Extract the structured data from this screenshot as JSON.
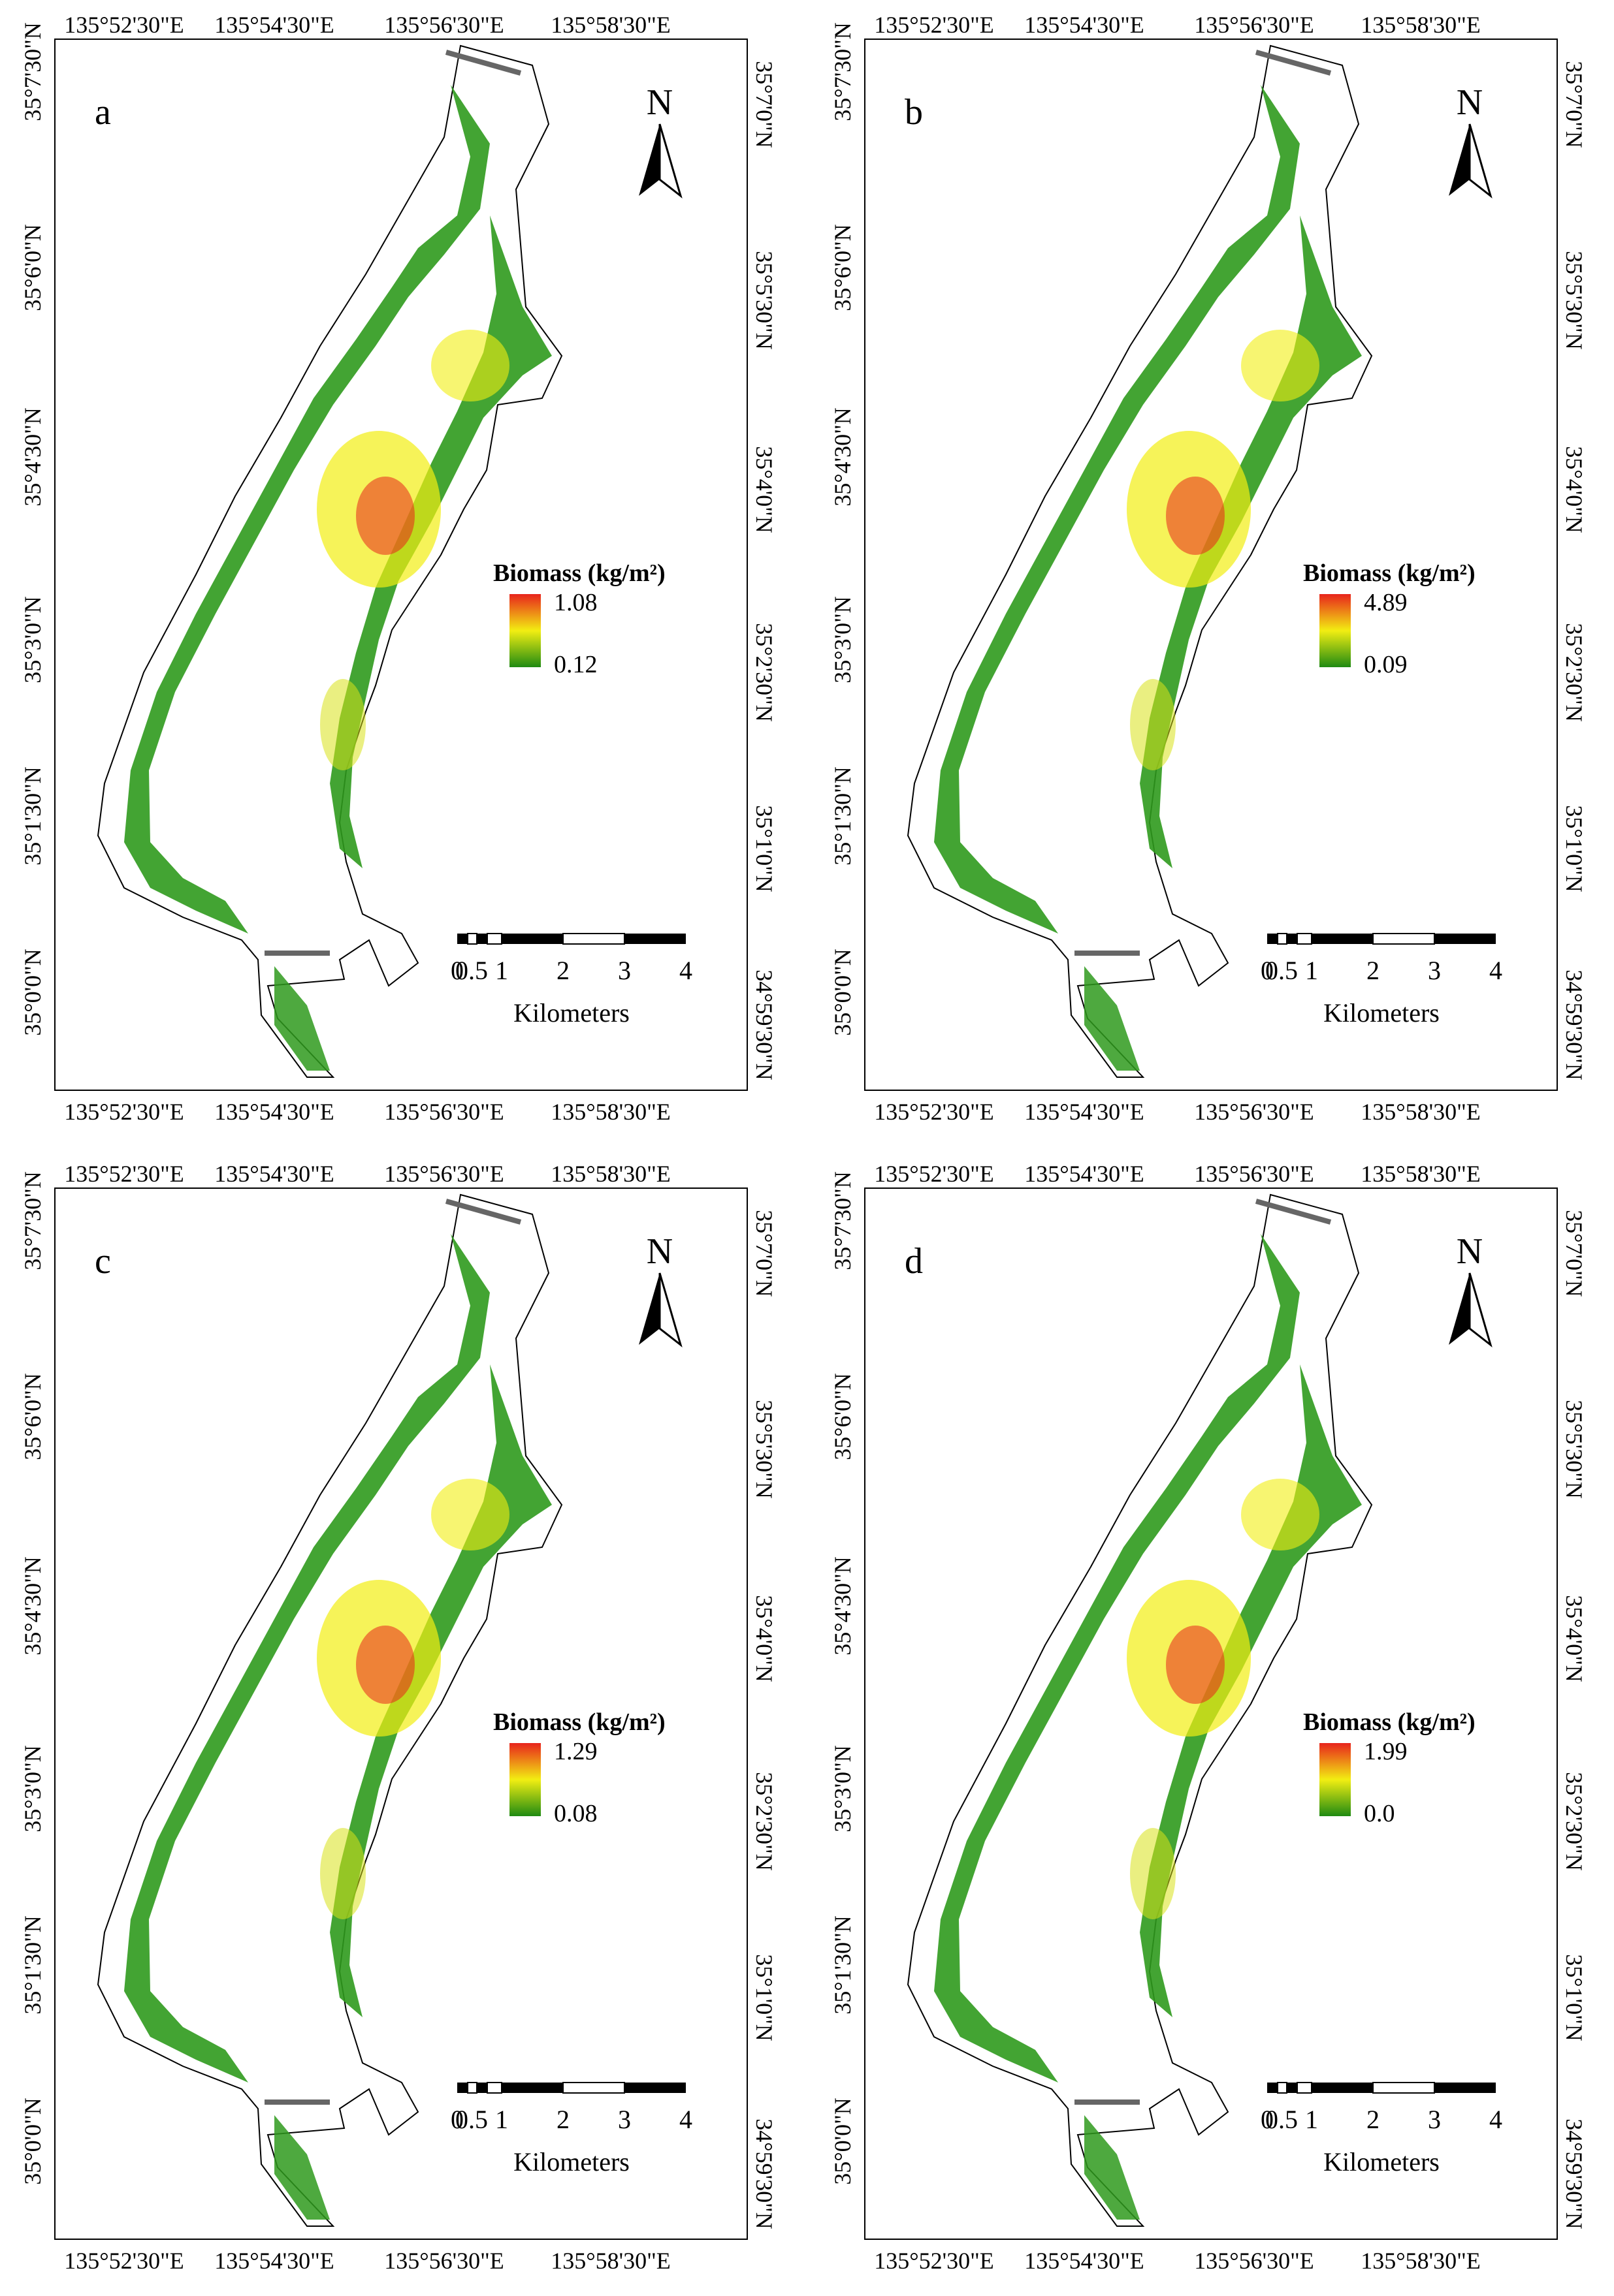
{
  "panels": [
    {
      "label": "a",
      "legend_title": "Biomass (kg/m²)",
      "max": "1.08",
      "min": "0.12"
    },
    {
      "label": "b",
      "legend_title": "Biomass (kg/m²)",
      "max": "4.89",
      "min": "0.09"
    },
    {
      "label": "c",
      "legend_title": "Biomass (kg/m²)",
      "max": "1.29",
      "min": "0.08"
    },
    {
      "label": "d",
      "legend_title": "Biomass (kg/m²)",
      "max": "1.99",
      "min": "0.0"
    }
  ],
  "lon_ticks": [
    "135°52'30\"E",
    "135°54'30\"E",
    "135°56'30\"E",
    "135°58'30\"E"
  ],
  "lat_ticks_left": [
    "35°7'30\"N",
    "35°6'0\"N",
    "35°4'30\"N",
    "35°3'0\"N",
    "35°1'30\"N",
    "35°0'0\"N"
  ],
  "lat_ticks_right": [
    "35°7'0\"N",
    "35°5'30\"N",
    "35°4'0\"N",
    "35°2'30\"N",
    "35°1'0\"N",
    "34°59'30\"N"
  ],
  "north_label": "N",
  "scalebar": {
    "labels": [
      "0",
      "0.5",
      "1",
      "2",
      "3",
      "4"
    ],
    "unit": "Kilometers"
  },
  "colors": {
    "low": "#1f8a12",
    "mid": "#f2ee12",
    "high": "#e8241c",
    "frame": "#000000",
    "dam": "#666666"
  }
}
